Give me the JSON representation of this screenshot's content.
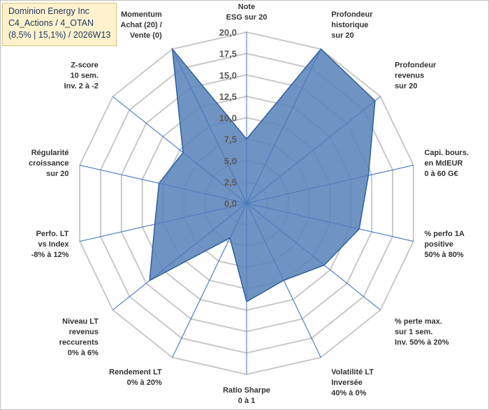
{
  "title": {
    "line1": "Dominion Energy Inc",
    "line2": "C4_Actions / 4_OTAN",
    "line3": "(8,5% | 15,1%) / 2026W13"
  },
  "colors": {
    "fill": "#5b84b9",
    "stroke": "#2f5f9a",
    "grid": "#c8c8c8",
    "spoke": "#4472c4",
    "title_bg": "#fff2cc"
  },
  "chart_data": {
    "type": "radar",
    "rmin": 0,
    "rmax": 20,
    "ticks": [
      "0,0",
      "2,5",
      "5,0",
      "7,5",
      "10,0",
      "12,5",
      "15,0",
      "17,5",
      "20,0"
    ],
    "axes": [
      {
        "lines": [
          "Note",
          "ESG sur 20"
        ],
        "value": 7.5
      },
      {
        "lines": [
          "Profondeur",
          "historique",
          "sur 20"
        ],
        "value": 20
      },
      {
        "lines": [
          "Profondeur",
          "revenus",
          "sur 20"
        ],
        "value": 19.2
      },
      {
        "lines": [
          "Capi. bours.",
          "en MdEUR",
          "0 à 60 G€"
        ],
        "value": 14.6
      },
      {
        "lines": [
          "% perfo 1A",
          "positive",
          "50% à 80%"
        ],
        "value": 13.5
      },
      {
        "lines": [
          "% perte max.",
          "sur 1 sem.",
          "Inv. 50% à 20%"
        ],
        "value": 11.6
      },
      {
        "lines": [
          "Volatilité LT",
          "Inversée",
          "40% à 0%"
        ],
        "value": 10
      },
      {
        "lines": [
          "Ratio Sharpe",
          "0 à 1"
        ],
        "value": 11.5
      },
      {
        "lines": [
          "Rendement LT",
          "0% à 20%"
        ],
        "value": 4.5
      },
      {
        "lines": [
          "Niveau LT",
          "revenus",
          "reccurents",
          "0% à 6%"
        ],
        "value": 14.5
      },
      {
        "lines": [
          "Perfo. LT",
          "vs Index",
          "-8% à 12%"
        ],
        "value": 11
      },
      {
        "lines": [
          "Régularité",
          "croissance",
          "sur 20"
        ],
        "value": 10.5
      },
      {
        "lines": [
          "Z-score",
          "10 sem.",
          "Inv. 2 à -2"
        ],
        "value": 9.5
      },
      {
        "lines": [
          "Momentum",
          "Achat (20) /",
          "Vente (0)"
        ],
        "value": 20
      }
    ]
  }
}
